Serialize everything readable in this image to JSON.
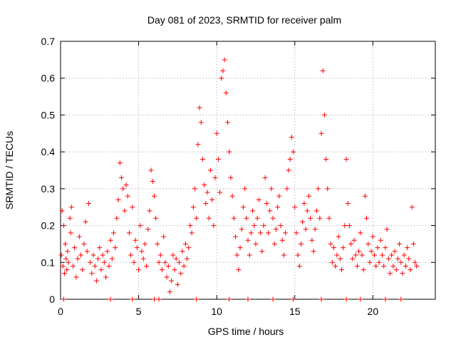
{
  "chart_data": {
    "type": "scatter",
    "title": "Day 081 of 2023, SRMTID for receiver palm",
    "xlabel": "GPS time / hours",
    "ylabel": "SRMTID / TECUs",
    "xlim": [
      0,
      24
    ],
    "ylim": [
      0,
      0.7
    ],
    "x_ticks": [
      0,
      5,
      10,
      15,
      20
    ],
    "y_ticks": [
      0,
      0.1,
      0.2,
      0.3,
      0.4,
      0.5,
      0.6,
      0.7
    ],
    "x_tick_labels": [
      "0",
      "5",
      "10",
      "15",
      "20"
    ],
    "y_tick_labels": [
      "0",
      "0.1",
      "0.2",
      "0.3",
      "0.4",
      "0.5",
      "0.6",
      "0.7"
    ],
    "grid": true,
    "marker": "+",
    "color": "#ff0000",
    "series": [
      {
        "name": "SRMTID",
        "points": [
          [
            0.05,
            0.12
          ],
          [
            0.1,
            0.24
          ],
          [
            0.15,
            0.09
          ],
          [
            0.2,
            0.2
          ],
          [
            0.25,
            0.07
          ],
          [
            0.3,
            0.15
          ],
          [
            0.35,
            0.11
          ],
          [
            0.4,
            0.08
          ],
          [
            0.45,
            0.13
          ],
          [
            0.5,
            0.1
          ],
          [
            0.6,
            0.22
          ],
          [
            0.65,
            0.18
          ],
          [
            0.7,
            0.25
          ],
          [
            0.8,
            0.09
          ],
          [
            0.9,
            0.14
          ],
          [
            1.0,
            0.06
          ],
          [
            1.1,
            0.11
          ],
          [
            1.2,
            0.17
          ],
          [
            1.3,
            0.12
          ],
          [
            1.4,
            0.08
          ],
          [
            1.5,
            0.15
          ],
          [
            1.6,
            0.21
          ],
          [
            1.7,
            0.13
          ],
          [
            1.8,
            0.26
          ],
          [
            1.9,
            0.1
          ],
          [
            2.0,
            0.07
          ],
          [
            2.1,
            0.12
          ],
          [
            2.2,
            0.09
          ],
          [
            2.3,
            0.05
          ],
          [
            2.4,
            0.11
          ],
          [
            2.5,
            0.14
          ],
          [
            2.6,
            0.08
          ],
          [
            2.7,
            0.12
          ],
          [
            2.8,
            0.1
          ],
          [
            2.9,
            0.06
          ],
          [
            3.0,
            0.13
          ],
          [
            3.1,
            0.09
          ],
          [
            3.2,
            0.16
          ],
          [
            3.3,
            0.11
          ],
          [
            3.4,
            0.18
          ],
          [
            3.5,
            0.14
          ],
          [
            3.6,
            0.22
          ],
          [
            3.7,
            0.27
          ],
          [
            3.8,
            0.37
          ],
          [
            3.9,
            0.33
          ],
          [
            4.0,
            0.3
          ],
          [
            4.1,
            0.24
          ],
          [
            4.2,
            0.31
          ],
          [
            4.3,
            0.28
          ],
          [
            4.4,
            0.18
          ],
          [
            4.5,
            0.12
          ],
          [
            4.6,
            0.25
          ],
          [
            4.7,
            0.1
          ],
          [
            4.8,
            0.16
          ],
          [
            4.9,
            0.14
          ],
          [
            5.0,
            0.08
          ],
          [
            5.1,
            0.2
          ],
          [
            5.2,
            0.13
          ],
          [
            5.3,
            0.11
          ],
          [
            5.4,
            0.15
          ],
          [
            5.5,
            0.09
          ],
          [
            5.6,
            0.19
          ],
          [
            5.7,
            0.24
          ],
          [
            5.8,
            0.35
          ],
          [
            5.9,
            0.32
          ],
          [
            6.0,
            0.28
          ],
          [
            6.1,
            0.22
          ],
          [
            6.2,
            0.15
          ],
          [
            6.3,
            0.1
          ],
          [
            6.4,
            0.12
          ],
          [
            6.5,
            0.08
          ],
          [
            6.6,
            0.17
          ],
          [
            6.7,
            0.1
          ],
          [
            6.8,
            0.06
          ],
          [
            6.9,
            0.09
          ],
          [
            7.0,
            0.02
          ],
          [
            7.1,
            0.05
          ],
          [
            7.2,
            0.12
          ],
          [
            7.3,
            0.08
          ],
          [
            7.4,
            0.11
          ],
          [
            7.5,
            0.04
          ],
          [
            7.6,
            0.1
          ],
          [
            7.7,
            0.07
          ],
          [
            7.8,
            0.13
          ],
          [
            7.9,
            0.09
          ],
          [
            8.0,
            0.15
          ],
          [
            8.1,
            0.11
          ],
          [
            8.2,
            0.14
          ],
          [
            8.3,
            0.2
          ],
          [
            8.4,
            0.18
          ],
          [
            8.5,
            0.25
          ],
          [
            8.6,
            0.3
          ],
          [
            8.7,
            0.22
          ],
          [
            8.8,
            0.42
          ],
          [
            8.9,
            0.52
          ],
          [
            9.0,
            0.48
          ],
          [
            9.1,
            0.38
          ],
          [
            9.2,
            0.31
          ],
          [
            9.3,
            0.26
          ],
          [
            9.4,
            0.29
          ],
          [
            9.5,
            0.22
          ],
          [
            9.6,
            0.35
          ],
          [
            9.7,
            0.27
          ],
          [
            9.8,
            0.2
          ],
          [
            9.9,
            0.33
          ],
          [
            10.0,
            0.45
          ],
          [
            10.1,
            0.38
          ],
          [
            10.2,
            0.29
          ],
          [
            10.3,
            0.6
          ],
          [
            10.4,
            0.62
          ],
          [
            10.5,
            0.65
          ],
          [
            10.6,
            0.56
          ],
          [
            10.7,
            0.48
          ],
          [
            10.8,
            0.4
          ],
          [
            10.9,
            0.33
          ],
          [
            11.0,
            0.28
          ],
          [
            11.1,
            0.22
          ],
          [
            11.2,
            0.17
          ],
          [
            11.3,
            0.12
          ],
          [
            11.4,
            0.08
          ],
          [
            11.5,
            0.14
          ],
          [
            11.6,
            0.19
          ],
          [
            11.7,
            0.25
          ],
          [
            11.8,
            0.3
          ],
          [
            11.9,
            0.22
          ],
          [
            12.0,
            0.16
          ],
          [
            12.1,
            0.12
          ],
          [
            12.2,
            0.18
          ],
          [
            12.3,
            0.24
          ],
          [
            12.4,
            0.2
          ],
          [
            12.5,
            0.15
          ],
          [
            12.6,
            0.22
          ],
          [
            12.7,
            0.27
          ],
          [
            12.8,
            0.18
          ],
          [
            12.9,
            0.13
          ],
          [
            13.0,
            0.2
          ],
          [
            13.1,
            0.33
          ],
          [
            13.2,
            0.26
          ],
          [
            13.3,
            0.18
          ],
          [
            13.4,
            0.24
          ],
          [
            13.5,
            0.3
          ],
          [
            13.6,
            0.22
          ],
          [
            13.7,
            0.15
          ],
          [
            13.8,
            0.19
          ],
          [
            13.9,
            0.25
          ],
          [
            14.0,
            0.28
          ],
          [
            14.1,
            0.2
          ],
          [
            14.2,
            0.16
          ],
          [
            14.3,
            0.12
          ],
          [
            14.4,
            0.18
          ],
          [
            14.5,
            0.3
          ],
          [
            14.6,
            0.35
          ],
          [
            14.7,
            0.38
          ],
          [
            14.8,
            0.44
          ],
          [
            14.9,
            0.4
          ],
          [
            15.0,
            0.25
          ],
          [
            15.1,
            0.18
          ],
          [
            15.2,
            0.12
          ],
          [
            15.3,
            0.09
          ],
          [
            15.4,
            0.15
          ],
          [
            15.5,
            0.21
          ],
          [
            15.6,
            0.26
          ],
          [
            15.7,
            0.19
          ],
          [
            15.8,
            0.24
          ],
          [
            15.9,
            0.28
          ],
          [
            16.0,
            0.22
          ],
          [
            16.1,
            0.16
          ],
          [
            16.2,
            0.13
          ],
          [
            16.3,
            0.19
          ],
          [
            16.4,
            0.24
          ],
          [
            16.5,
            0.3
          ],
          [
            16.6,
            0.22
          ],
          [
            16.7,
            0.45
          ],
          [
            16.8,
            0.62
          ],
          [
            16.9,
            0.5
          ],
          [
            17.0,
            0.38
          ],
          [
            17.1,
            0.3
          ],
          [
            17.2,
            0.22
          ],
          [
            17.3,
            0.15
          ],
          [
            17.4,
            0.1
          ],
          [
            17.5,
            0.14
          ],
          [
            17.6,
            0.09
          ],
          [
            17.7,
            0.12
          ],
          [
            17.8,
            0.17
          ],
          [
            17.9,
            0.11
          ],
          [
            18.0,
            0.08
          ],
          [
            18.1,
            0.14
          ],
          [
            18.2,
            0.2
          ],
          [
            18.3,
            0.38
          ],
          [
            18.4,
            0.26
          ],
          [
            18.5,
            0.2
          ],
          [
            18.6,
            0.15
          ],
          [
            18.7,
            0.11
          ],
          [
            18.8,
            0.16
          ],
          [
            18.9,
            0.12
          ],
          [
            19.0,
            0.09
          ],
          [
            19.1,
            0.13
          ],
          [
            19.2,
            0.18
          ],
          [
            19.3,
            0.12
          ],
          [
            19.4,
            0.08
          ],
          [
            19.5,
            0.28
          ],
          [
            19.6,
            0.22
          ],
          [
            19.7,
            0.15
          ],
          [
            19.8,
            0.1
          ],
          [
            19.9,
            0.13
          ],
          [
            20.0,
            0.17
          ],
          [
            20.1,
            0.12
          ],
          [
            20.2,
            0.09
          ],
          [
            20.3,
            0.14
          ],
          [
            20.4,
            0.1
          ],
          [
            20.5,
            0.16
          ],
          [
            20.6,
            0.12
          ],
          [
            20.7,
            0.09
          ],
          [
            20.8,
            0.14
          ],
          [
            20.9,
            0.19
          ],
          [
            21.0,
            0.11
          ],
          [
            21.1,
            0.07
          ],
          [
            21.2,
            0.12
          ],
          [
            21.3,
            0.09
          ],
          [
            21.4,
            0.13
          ],
          [
            21.5,
            0.08
          ],
          [
            21.6,
            0.11
          ],
          [
            21.7,
            0.15
          ],
          [
            21.8,
            0.1
          ],
          [
            21.9,
            0.07
          ],
          [
            22.0,
            0.12
          ],
          [
            22.1,
            0.09
          ],
          [
            22.2,
            0.14
          ],
          [
            22.3,
            0.11
          ],
          [
            22.4,
            0.08
          ],
          [
            22.5,
            0.25
          ],
          [
            22.6,
            0.15
          ],
          [
            22.7,
            0.1
          ],
          [
            22.8,
            0.09
          ],
          [
            0.2,
            0.0
          ],
          [
            3.2,
            0.0
          ],
          [
            4.6,
            0.0
          ],
          [
            6.0,
            0.0
          ],
          [
            6.3,
            0.0
          ],
          [
            8.7,
            0.0
          ],
          [
            10.8,
            0.0
          ],
          [
            12.0,
            0.0
          ],
          [
            13.6,
            0.0
          ],
          [
            14.9,
            0.0
          ],
          [
            16.7,
            0.0
          ],
          [
            18.3,
            0.0
          ],
          [
            19.2,
            0.0
          ],
          [
            20.8,
            0.0
          ],
          [
            21.8,
            0.0
          ]
        ]
      }
    ]
  }
}
